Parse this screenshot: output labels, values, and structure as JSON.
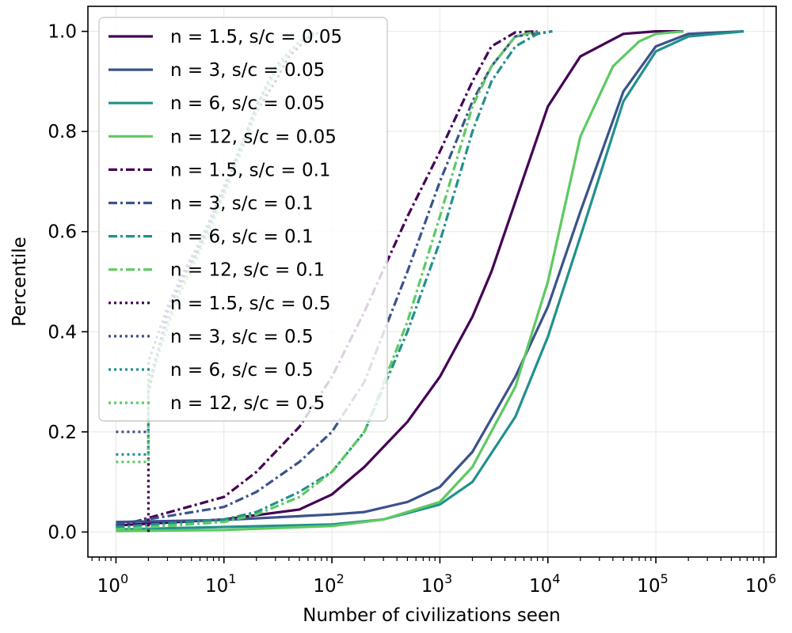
{
  "chart_data": {
    "type": "line",
    "title": "",
    "xlabel": "Number of civilizations seen",
    "ylabel": "Percentile",
    "xscale": "log",
    "xlim": [
      0.55,
      1300000
    ],
    "ylim": [
      -0.05,
      1.05
    ],
    "grid": true,
    "legend_position": "top-left",
    "x_ticks": [
      {
        "base": "10",
        "exp": "0",
        "value": 1
      },
      {
        "base": "10",
        "exp": "1",
        "value": 10
      },
      {
        "base": "10",
        "exp": "2",
        "value": 100
      },
      {
        "base": "10",
        "exp": "3",
        "value": 1000
      },
      {
        "base": "10",
        "exp": "4",
        "value": 10000
      },
      {
        "base": "10",
        "exp": "5",
        "value": 100000
      },
      {
        "base": "10",
        "exp": "6",
        "value": 1000000
      }
    ],
    "y_ticks": [
      {
        "label": "0.0",
        "value": 0
      },
      {
        "label": "0.2",
        "value": 0.2
      },
      {
        "label": "0.4",
        "value": 0.4
      },
      {
        "label": "0.6",
        "value": 0.6
      },
      {
        "label": "0.8",
        "value": 0.8
      },
      {
        "label": "1.0",
        "value": 1.0
      }
    ],
    "series": [
      {
        "name": "n = 1.5, s/c = 0.05",
        "color": "#440154",
        "dash": "solid",
        "points": [
          [
            1,
            0.013
          ],
          [
            10,
            0.025
          ],
          [
            50,
            0.045
          ],
          [
            100,
            0.075
          ],
          [
            200,
            0.13
          ],
          [
            500,
            0.22
          ],
          [
            1000,
            0.31
          ],
          [
            2000,
            0.43
          ],
          [
            3000,
            0.52
          ],
          [
            5000,
            0.66
          ],
          [
            10000,
            0.85
          ],
          [
            20000,
            0.95
          ],
          [
            50000,
            0.995
          ],
          [
            100000,
            1.0
          ],
          [
            180000,
            1.0
          ]
        ]
      },
      {
        "name": "n = 3, s/c = 0.05",
        "color": "#3b528b",
        "dash": "solid",
        "points": [
          [
            1,
            0.02
          ],
          [
            10,
            0.024
          ],
          [
            100,
            0.035
          ],
          [
            200,
            0.04
          ],
          [
            500,
            0.06
          ],
          [
            1000,
            0.09
          ],
          [
            2000,
            0.16
          ],
          [
            5000,
            0.31
          ],
          [
            10000,
            0.45
          ],
          [
            20000,
            0.64
          ],
          [
            50000,
            0.88
          ],
          [
            100000,
            0.97
          ],
          [
            200000,
            0.995
          ],
          [
            650000,
            1.0
          ]
        ]
      },
      {
        "name": "n = 6, s/c = 0.05",
        "color": "#21918c",
        "dash": "solid",
        "points": [
          [
            1,
            0.005
          ],
          [
            10,
            0.01
          ],
          [
            100,
            0.015
          ],
          [
            300,
            0.025
          ],
          [
            1000,
            0.055
          ],
          [
            2000,
            0.1
          ],
          [
            5000,
            0.23
          ],
          [
            10000,
            0.39
          ],
          [
            20000,
            0.59
          ],
          [
            50000,
            0.86
          ],
          [
            100000,
            0.96
          ],
          [
            200000,
            0.99
          ],
          [
            650000,
            1.0
          ]
        ]
      },
      {
        "name": "n = 12, s/c = 0.05",
        "color": "#5ec962",
        "dash": "solid",
        "points": [
          [
            1,
            0.002
          ],
          [
            10,
            0.004
          ],
          [
            100,
            0.012
          ],
          [
            300,
            0.025
          ],
          [
            1000,
            0.06
          ],
          [
            2000,
            0.13
          ],
          [
            5000,
            0.29
          ],
          [
            10000,
            0.5
          ],
          [
            20000,
            0.79
          ],
          [
            40000,
            0.93
          ],
          [
            70000,
            0.98
          ],
          [
            100000,
            0.995
          ],
          [
            180000,
            1.0
          ]
        ]
      },
      {
        "name": "n = 1.5, s/c = 0.1",
        "color": "#440154",
        "dash": "dashdot",
        "points": [
          [
            1,
            0.01
          ],
          [
            10,
            0.07
          ],
          [
            20,
            0.12
          ],
          [
            50,
            0.21
          ],
          [
            100,
            0.31
          ],
          [
            200,
            0.44
          ],
          [
            500,
            0.63
          ],
          [
            1000,
            0.76
          ],
          [
            2000,
            0.9
          ],
          [
            3000,
            0.97
          ],
          [
            5000,
            0.998
          ],
          [
            8000,
            1.0
          ]
        ]
      },
      {
        "name": "n = 3, s/c = 0.1",
        "color": "#3b528b",
        "dash": "dashdot",
        "points": [
          [
            1,
            0.015
          ],
          [
            10,
            0.05
          ],
          [
            20,
            0.08
          ],
          [
            50,
            0.14
          ],
          [
            100,
            0.2
          ],
          [
            200,
            0.3
          ],
          [
            500,
            0.52
          ],
          [
            1000,
            0.7
          ],
          [
            2000,
            0.86
          ],
          [
            3000,
            0.93
          ],
          [
            5000,
            0.99
          ],
          [
            11000,
            1.0
          ]
        ]
      },
      {
        "name": "n = 6, s/c = 0.1",
        "color": "#21918c",
        "dash": "dashdot",
        "points": [
          [
            1,
            0.01
          ],
          [
            10,
            0.025
          ],
          [
            20,
            0.04
          ],
          [
            50,
            0.08
          ],
          [
            100,
            0.12
          ],
          [
            200,
            0.2
          ],
          [
            500,
            0.4
          ],
          [
            1000,
            0.58
          ],
          [
            2000,
            0.8
          ],
          [
            3000,
            0.9
          ],
          [
            5000,
            0.97
          ],
          [
            8000,
            0.995
          ],
          [
            11000,
            1.0
          ]
        ]
      },
      {
        "name": "n = 12, s/c = 0.1",
        "color": "#5ec962",
        "dash": "dashdot",
        "points": [
          [
            1,
            0.005
          ],
          [
            10,
            0.02
          ],
          [
            20,
            0.035
          ],
          [
            50,
            0.07
          ],
          [
            100,
            0.12
          ],
          [
            200,
            0.2
          ],
          [
            500,
            0.42
          ],
          [
            1000,
            0.63
          ],
          [
            2000,
            0.85
          ],
          [
            3000,
            0.93
          ],
          [
            5000,
            0.99
          ],
          [
            8000,
            1.0
          ]
        ]
      },
      {
        "name": "n = 1.5, s/c = 0.5",
        "color": "#440154",
        "dash": "dotted",
        "points": [
          [
            2,
            0.0
          ],
          [
            2,
            0.28
          ],
          [
            3,
            0.44
          ],
          [
            4,
            0.5
          ],
          [
            6,
            0.57
          ],
          [
            8,
            0.63
          ],
          [
            10,
            0.68
          ],
          [
            15,
            0.77
          ],
          [
            20,
            0.84
          ],
          [
            30,
            0.9
          ],
          [
            40,
            0.95
          ],
          [
            50,
            0.97
          ],
          [
            70,
            1.0
          ]
        ]
      },
      {
        "name": "n = 3, s/c = 0.5",
        "color": "#3b528b",
        "dash": "dotted",
        "points": [
          [
            1,
            0.2
          ],
          [
            2,
            0.2
          ],
          [
            2,
            0.34
          ],
          [
            3,
            0.45
          ],
          [
            4,
            0.51
          ],
          [
            6,
            0.58
          ],
          [
            8,
            0.64
          ],
          [
            10,
            0.69
          ],
          [
            15,
            0.78
          ],
          [
            20,
            0.85
          ],
          [
            30,
            0.92
          ],
          [
            50,
            0.98
          ],
          [
            80,
            1.0
          ]
        ]
      },
      {
        "name": "n = 6, s/c = 0.5",
        "color": "#21918c",
        "dash": "dotted",
        "points": [
          [
            1,
            0.155
          ],
          [
            2,
            0.155
          ],
          [
            2,
            0.3
          ],
          [
            3,
            0.42
          ],
          [
            4,
            0.49
          ],
          [
            6,
            0.57
          ],
          [
            8,
            0.63
          ],
          [
            10,
            0.68
          ],
          [
            15,
            0.78
          ],
          [
            20,
            0.85
          ],
          [
            30,
            0.93
          ],
          [
            50,
            0.98
          ],
          [
            80,
            1.0
          ]
        ]
      },
      {
        "name": "n = 12, s/c = 0.5",
        "color": "#5ec962",
        "dash": "dotted",
        "points": [
          [
            1,
            0.14
          ],
          [
            2,
            0.14
          ],
          [
            2,
            0.29
          ],
          [
            3,
            0.41
          ],
          [
            4,
            0.48
          ],
          [
            6,
            0.56
          ],
          [
            8,
            0.62
          ],
          [
            10,
            0.67
          ],
          [
            15,
            0.77
          ],
          [
            20,
            0.84
          ],
          [
            30,
            0.92
          ],
          [
            50,
            0.98
          ],
          [
            80,
            1.0
          ]
        ]
      }
    ]
  }
}
